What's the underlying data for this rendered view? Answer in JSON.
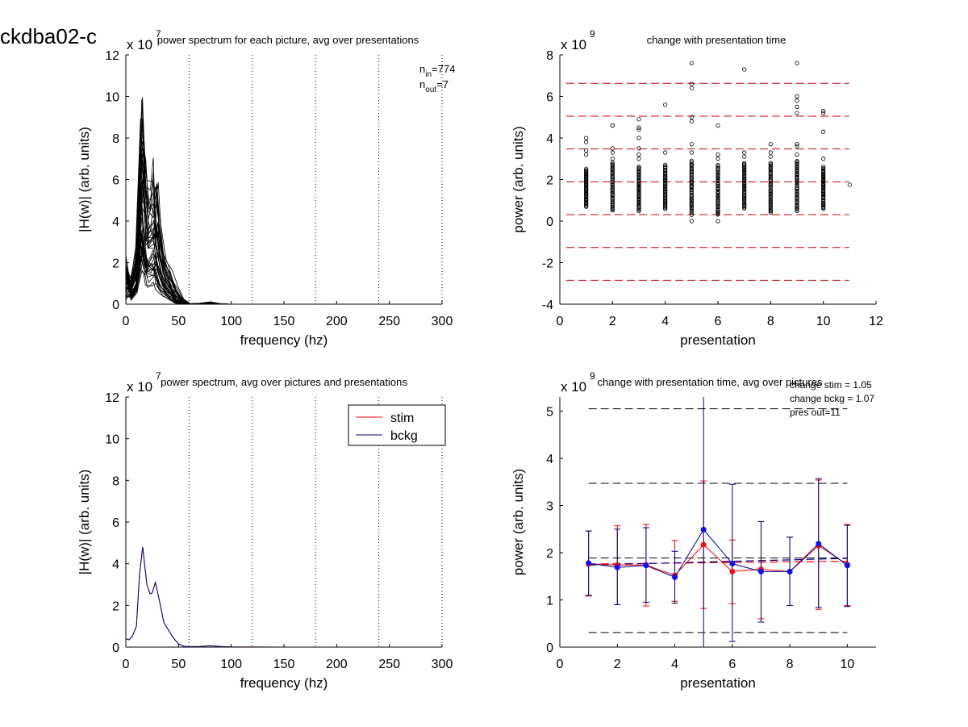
{
  "figure_title": "ckdba02-c",
  "chart_data": [
    {
      "id": "top-left",
      "type": "line",
      "title": "power spectrum for each picture, avg over presentations",
      "xlabel": "frequency (hz)",
      "ylabel": "|H(w)| (arb. units)",
      "exponent_label": "x 10",
      "exponent": "7",
      "xlim": [
        0,
        300
      ],
      "ylim": [
        0,
        12
      ],
      "xticks": [
        0,
        50,
        100,
        150,
        200,
        250,
        300
      ],
      "yticks": [
        0,
        2,
        4,
        6,
        8,
        10,
        12
      ],
      "vlines": [
        60,
        120,
        180,
        240,
        300
      ],
      "annotations": [
        {
          "main": "n",
          "sub": "in",
          "value": "=774"
        },
        {
          "main": "n",
          "sub": "out",
          "value": "=7"
        }
      ],
      "line_color": "#000000",
      "curve_count": 40,
      "mean_curve": {
        "x": [
          0,
          5,
          10,
          15,
          18,
          20,
          25,
          28,
          30,
          35,
          40,
          45,
          50,
          55,
          60,
          70,
          80,
          90,
          100,
          150,
          200,
          250,
          300
        ],
        "y": [
          0.5,
          0.6,
          1.3,
          4.8,
          3.5,
          2.6,
          2.7,
          3.1,
          2.2,
          1.2,
          0.8,
          0.45,
          0.15,
          0.03,
          0.01,
          0.02,
          0.05,
          0.01,
          0.0,
          0.0,
          0.0,
          0.0,
          0.0
        ]
      }
    },
    {
      "id": "top-right",
      "type": "scatter",
      "title": "change with presentation time",
      "xlabel": "presentation",
      "ylabel": "power (arb. units)",
      "exponent_label": "x 10",
      "exponent": "9",
      "xlim": [
        0,
        12
      ],
      "ylim": [
        -4,
        8
      ],
      "xticks": [
        0,
        2,
        4,
        6,
        8,
        10,
        12
      ],
      "yticks": [
        -4,
        -2,
        0,
        2,
        4,
        6,
        8
      ],
      "hlines": [
        6.63,
        5.05,
        3.47,
        1.89,
        0.31,
        -1.27,
        -2.85
      ],
      "hline_color": "#cc0000",
      "points": [
        {
          "x": 1,
          "min": 0.7,
          "max": 2.5,
          "outliers": [
            3.2,
            3.4,
            3.8,
            4.0
          ]
        },
        {
          "x": 2,
          "min": 0.5,
          "max": 2.8,
          "outliers": [
            3.0,
            3.3,
            3.5,
            4.6,
            4.6
          ]
        },
        {
          "x": 3,
          "min": 0.5,
          "max": 2.6,
          "outliers": [
            3.0,
            3.2,
            3.5,
            4.0,
            4.4,
            4.5,
            4.9
          ]
        },
        {
          "x": 4,
          "min": 0.6,
          "max": 2.7,
          "outliers": [
            3.3,
            5.6
          ]
        },
        {
          "x": 5,
          "min": 0.4,
          "max": 2.9,
          "outliers": [
            0.0,
            0.3,
            3.3,
            3.7,
            4.8,
            5.0,
            6.4,
            6.6,
            7.6
          ]
        },
        {
          "x": 6,
          "min": 0.3,
          "max": 2.7,
          "outliers": [
            0.0,
            3.0,
            3.2,
            4.6
          ]
        },
        {
          "x": 7,
          "min": 0.6,
          "max": 2.8,
          "outliers": [
            3.1,
            3.3,
            7.3
          ]
        },
        {
          "x": 8,
          "min": 0.4,
          "max": 2.8,
          "outliers": [
            3.1,
            3.3,
            3.7
          ]
        },
        {
          "x": 9,
          "min": 0.5,
          "max": 2.9,
          "outliers": [
            3.2,
            3.6,
            3.7,
            5.2,
            5.5,
            5.8,
            6.0,
            7.6
          ]
        },
        {
          "x": 10,
          "min": 0.6,
          "max": 2.6,
          "outliers": [
            3.0,
            4.3,
            5.2,
            5.3
          ]
        },
        {
          "x": 11,
          "min": 1.75,
          "max": 1.75,
          "outliers": []
        }
      ]
    },
    {
      "id": "bottom-left",
      "type": "line",
      "title": "power spectrum, avg over pictures and presentations",
      "xlabel": "frequency (hz)",
      "ylabel": "|H(w)| (arb. units)",
      "exponent_label": "x 10",
      "exponent": "7",
      "xlim": [
        0,
        300
      ],
      "ylim": [
        0,
        12
      ],
      "xticks": [
        0,
        50,
        100,
        150,
        200,
        250,
        300
      ],
      "yticks": [
        0,
        2,
        4,
        6,
        8,
        10,
        12
      ],
      "vlines": [
        60,
        120,
        180,
        240,
        300
      ],
      "legend": [
        {
          "label": "stim",
          "color": "#ff0000"
        },
        {
          "label": "bckg",
          "color": "#00008b"
        }
      ],
      "series": [
        {
          "name": "stim",
          "color": "#ff0000",
          "x": [
            0,
            3,
            6,
            10,
            13,
            16,
            20,
            23,
            25,
            28,
            32,
            36,
            40,
            45,
            50,
            55,
            60,
            70,
            80,
            90,
            100,
            150,
            200,
            250,
            300
          ],
          "y": [
            0.4,
            0.35,
            0.5,
            1.0,
            3.5,
            4.8,
            3.0,
            2.55,
            2.6,
            3.1,
            2.2,
            1.2,
            0.85,
            0.45,
            0.15,
            0.04,
            0.02,
            0.03,
            0.07,
            0.03,
            0.01,
            0.0,
            0.0,
            0.0,
            0.0
          ]
        },
        {
          "name": "bckg",
          "color": "#00008b",
          "x": [
            0,
            3,
            6,
            10,
            13,
            16,
            20,
            23,
            25,
            28,
            32,
            36,
            40,
            45,
            50,
            55,
            60,
            70,
            80,
            90,
            100,
            150,
            200,
            250,
            300
          ],
          "y": [
            0.4,
            0.35,
            0.5,
            1.0,
            3.5,
            4.8,
            3.0,
            2.55,
            2.6,
            3.1,
            2.2,
            1.2,
            0.85,
            0.45,
            0.15,
            0.04,
            0.02,
            0.03,
            0.07,
            0.03,
            0.01,
            0.0,
            0.0,
            0.0,
            0.0
          ]
        }
      ]
    },
    {
      "id": "bottom-right",
      "type": "line",
      "title": "change with presentation time, avg over pictures",
      "xlabel": "presentation",
      "ylabel": "power (arb. units)",
      "exponent_label": "x 10",
      "exponent": "9",
      "xlim": [
        0,
        11
      ],
      "ylim": [
        0,
        5.3
      ],
      "xticks": [
        0,
        2,
        4,
        6,
        8,
        10
      ],
      "yticks": [
        0,
        1,
        2,
        3,
        4,
        5
      ],
      "annotations": [
        "change stim = 1.05",
        "change bckg = 1.07",
        "pres out=11"
      ],
      "hlines": [
        5.05,
        3.47,
        1.89,
        0.31
      ],
      "hline_color": "#000000",
      "trend_lines": [
        {
          "color": "#ff0000",
          "y_start": 1.76,
          "y_end": 1.82
        },
        {
          "color": "#00008b",
          "y_start": 1.74,
          "y_end": 1.88
        }
      ],
      "series": [
        {
          "name": "stim",
          "color": "#ff0000",
          "x": [
            1,
            2,
            3,
            4,
            5,
            6,
            7,
            8,
            9,
            10
          ],
          "y": [
            1.76,
            1.74,
            1.74,
            1.52,
            2.17,
            1.6,
            1.65,
            1.6,
            2.15,
            1.75
          ],
          "err_low": [
            1.08,
            0.9,
            0.87,
            0.97,
            0.82,
            0.92,
            0.6,
            0.88,
            0.8,
            0.88
          ],
          "err_high": [
            2.46,
            2.57,
            2.6,
            2.26,
            3.52,
            2.27,
            2.66,
            2.33,
            3.54,
            2.6
          ]
        },
        {
          "name": "bckg",
          "color": "#00008b",
          "x": [
            1,
            2,
            3,
            4,
            5,
            6,
            7,
            8,
            9,
            10
          ],
          "y": [
            1.78,
            1.69,
            1.73,
            1.48,
            2.49,
            1.77,
            1.6,
            1.6,
            2.19,
            1.73
          ],
          "err_low": [
            1.1,
            0.9,
            0.95,
            0.93,
            -0.57,
            0.12,
            0.53,
            0.88,
            0.84,
            0.86
          ],
          "err_high": [
            2.46,
            2.5,
            2.53,
            2.03,
            5.55,
            3.45,
            2.66,
            2.33,
            3.57,
            2.58
          ]
        }
      ]
    }
  ]
}
